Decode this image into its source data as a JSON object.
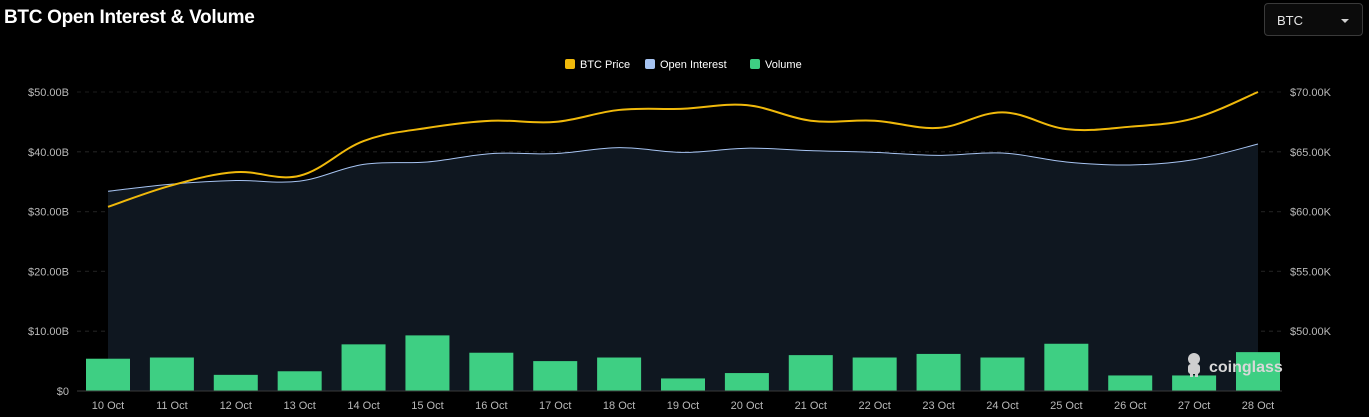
{
  "header": {
    "title": "BTC Open Interest & Volume"
  },
  "symbol_selector": {
    "value": "BTC"
  },
  "watermark": {
    "text": "coinglass"
  },
  "colors": {
    "background": "#000000",
    "btc_price": "#f0b90b",
    "open_interest": "#a7c4f2",
    "volume": "#3ecf83",
    "grid": "#2a2a2a",
    "area_fill": "#0f1720"
  },
  "chart_data": {
    "type": "bar",
    "title": "BTC Open Interest & Volume",
    "categories": [
      "10 Oct",
      "11 Oct",
      "12 Oct",
      "13 Oct",
      "14 Oct",
      "15 Oct",
      "16 Oct",
      "17 Oct",
      "18 Oct",
      "19 Oct",
      "20 Oct",
      "21 Oct",
      "22 Oct",
      "23 Oct",
      "24 Oct",
      "25 Oct",
      "26 Oct",
      "27 Oct",
      "28 Oct"
    ],
    "y_left": {
      "ylim": [
        0,
        50000000000
      ],
      "ticks": [
        "$0",
        "$10.00B",
        "$20.00B",
        "$30.00B",
        "$40.00B",
        "$50.00B"
      ]
    },
    "y_right": {
      "ylim": [
        45000,
        70000
      ],
      "ticks": [
        "$50.00K",
        "$55.00K",
        "$60.00K",
        "$65.00K",
        "$70.00K"
      ]
    },
    "legend_position": "top-center",
    "grid": true,
    "series": [
      {
        "name": "BTC Price",
        "type": "line",
        "axis": "right",
        "values": [
          60400,
          62200,
          63300,
          63000,
          65900,
          67000,
          67600,
          67500,
          68500,
          68600,
          68900,
          67600,
          67600,
          67000,
          68300,
          66900,
          67100,
          67800,
          70000
        ]
      },
      {
        "name": "Open Interest",
        "type": "area",
        "axis": "left",
        "values": [
          33400000000,
          34600000000,
          35200000000,
          35100000000,
          37900000000,
          38300000000,
          39700000000,
          39700000000,
          40700000000,
          39900000000,
          40600000000,
          40200000000,
          39900000000,
          39400000000,
          39800000000,
          38300000000,
          37800000000,
          38700000000,
          41300000000
        ]
      },
      {
        "name": "Volume",
        "type": "bar",
        "axis": "left",
        "values": [
          5400000000,
          5600000000,
          2700000000,
          3300000000,
          7800000000,
          9300000000,
          6400000000,
          5000000000,
          5600000000,
          2100000000,
          3000000000,
          6000000000,
          5600000000,
          6200000000,
          5600000000,
          7900000000,
          2600000000,
          2600000000,
          6500000000
        ]
      }
    ]
  }
}
